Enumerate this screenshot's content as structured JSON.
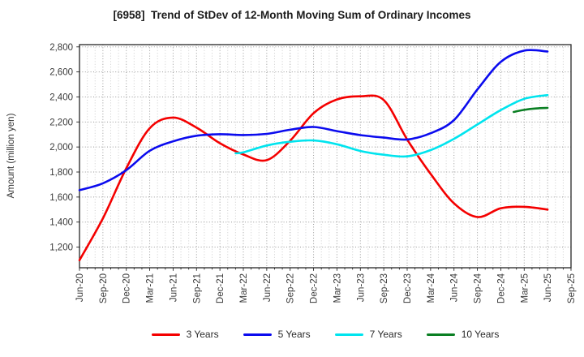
{
  "chart_data": {
    "type": "line",
    "title": "[6958]  Trend of StDev of 12-Month Moving Sum of Ordinary Incomes",
    "ylabel": "Amount (million yen)",
    "xlabel": "",
    "grid": true,
    "legend_position": "bottom",
    "ylim": [
      1035,
      2818
    ],
    "yticks": [
      1200,
      1400,
      1600,
      1800,
      2000,
      2200,
      2400,
      2600,
      2800
    ],
    "ytick_labels": [
      "1,200",
      "1,400",
      "1,600",
      "1,800",
      "2,000",
      "2,200",
      "2,400",
      "2,600",
      "2,800"
    ],
    "x_labels": [
      "Jun-20",
      "Sep-20",
      "Dec-20",
      "Mar-21",
      "Jun-21",
      "Sep-21",
      "Dec-21",
      "Mar-22",
      "Jun-22",
      "Sep-22",
      "Dec-22",
      "Mar-23",
      "Jun-23",
      "Sep-23",
      "Dec-23",
      "Mar-24",
      "Jun-24",
      "Sep-24",
      "Dec-24",
      "Mar-25",
      "Jun-25",
      "Sep-25"
    ],
    "series": [
      {
        "name": "3 Years",
        "color": "#f40000",
        "start_index": 0,
        "values": [
          1095,
          1430,
          1830,
          2150,
          2235,
          2155,
          2030,
          1940,
          1895,
          2050,
          2270,
          2380,
          2405,
          2375,
          2060,
          1785,
          1550,
          1440,
          1510,
          1522,
          1500
        ]
      },
      {
        "name": "5 Years",
        "color": "#0b0bee",
        "start_index": 0,
        "values": [
          1655,
          1710,
          1815,
          1970,
          2045,
          2090,
          2102,
          2096,
          2105,
          2138,
          2160,
          2127,
          2095,
          2075,
          2060,
          2110,
          2215,
          2460,
          2680,
          2770,
          2763
        ]
      },
      {
        "name": "7 Years",
        "color": "#00e4ee",
        "x_index": [
          6.67,
          7,
          8,
          9,
          10,
          11,
          12,
          13,
          14,
          15,
          16,
          17,
          18,
          19,
          20
        ],
        "values": [
          1950,
          1957,
          2012,
          2042,
          2052,
          2022,
          1968,
          1938,
          1925,
          1975,
          2065,
          2180,
          2295,
          2385,
          2415
        ]
      },
      {
        "name": "10 Years",
        "color": "#0a7f23",
        "x_index": [
          18.55,
          19,
          19.5,
          20
        ],
        "values": [
          2280,
          2297,
          2308,
          2312
        ]
      }
    ]
  }
}
